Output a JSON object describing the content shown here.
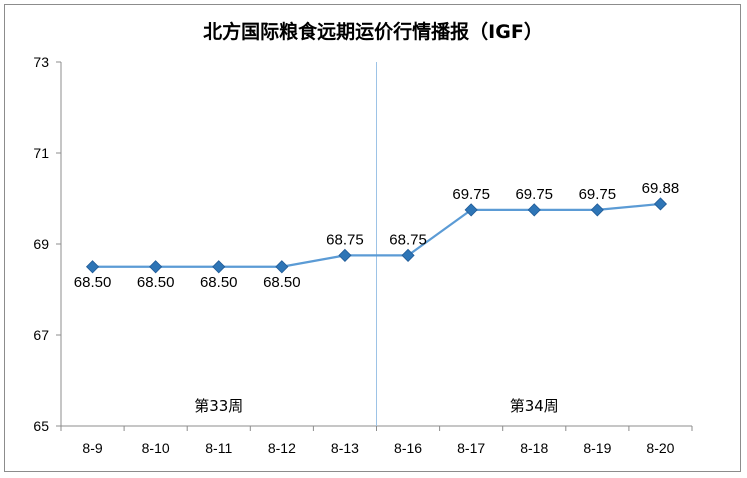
{
  "chart_data": {
    "type": "line",
    "title": "北方国际粮食远期运价行情播报（IGF）",
    "categories": [
      "8-9",
      "8-10",
      "8-11",
      "8-12",
      "8-13",
      "8-16",
      "8-17",
      "8-18",
      "8-19",
      "8-20"
    ],
    "series": [
      {
        "values": [
          68.5,
          68.5,
          68.5,
          68.5,
          68.75,
          68.75,
          69.75,
          69.75,
          69.75,
          69.88
        ],
        "labels": [
          "68.50",
          "68.50",
          "68.50",
          "68.50",
          "68.75",
          "68.75",
          "69.75",
          "69.75",
          "69.75",
          "69.88"
        ],
        "color": "#5B9BD5",
        "marker_color": "#2E75B6"
      }
    ],
    "ylim": [
      65,
      73
    ],
    "yticks": [
      65,
      67,
      69,
      71,
      73
    ],
    "grid": false,
    "legend": "none",
    "week_groups": [
      {
        "label": "第33周",
        "categories": [
          "8-9",
          "8-10",
          "8-11",
          "8-12",
          "8-13"
        ]
      },
      {
        "label": "第34周",
        "categories": [
          "8-16",
          "8-17",
          "8-18",
          "8-19",
          "8-20"
        ]
      }
    ],
    "week_divider_color": "#9DC3E6"
  }
}
